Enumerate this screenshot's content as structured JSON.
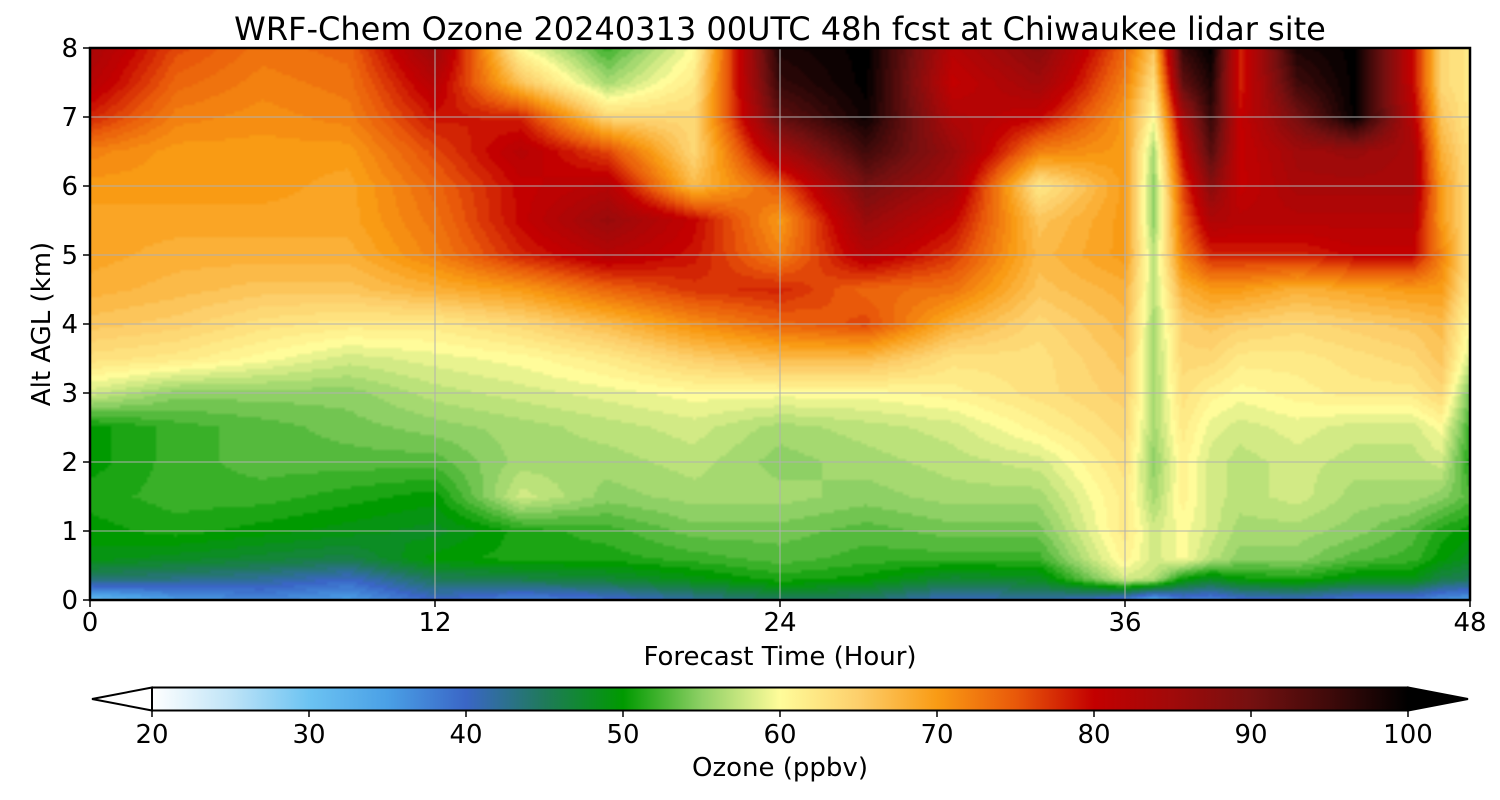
{
  "chart_data": {
    "type": "heatmap",
    "title": "WRF-Chem Ozone  20240313 00UTC 48h fcst at Chiwaukee lidar site",
    "xlabel": "Forecast Time (Hour)",
    "ylabel": "Alt AGL (km)",
    "xlim": [
      0,
      48
    ],
    "ylim": [
      0,
      8
    ],
    "x_ticks": [
      "0",
      "12",
      "24",
      "36",
      "48"
    ],
    "y_ticks": [
      "0",
      "1",
      "2",
      "3",
      "4",
      "5",
      "6",
      "7",
      "8"
    ],
    "grid": true,
    "colorbar": {
      "label": "Ozone  (ppbv)",
      "range": [
        20,
        100
      ],
      "extend": "both",
      "ticks": [
        "20",
        "30",
        "40",
        "50",
        "60",
        "70",
        "80",
        "90",
        "100"
      ],
      "stops": [
        {
          "value": 20,
          "color": "#ffffff"
        },
        {
          "value": 25,
          "color": "#bfe4f7"
        },
        {
          "value": 30,
          "color": "#6cc3f2"
        },
        {
          "value": 35,
          "color": "#4aa0e6"
        },
        {
          "value": 40,
          "color": "#3a66c6"
        },
        {
          "value": 45,
          "color": "#1f7a5a"
        },
        {
          "value": 50,
          "color": "#009a00"
        },
        {
          "value": 55,
          "color": "#8ed065"
        },
        {
          "value": 60,
          "color": "#fffc9a"
        },
        {
          "value": 65,
          "color": "#fdcf6b"
        },
        {
          "value": 70,
          "color": "#f99b14"
        },
        {
          "value": 75,
          "color": "#e9590a"
        },
        {
          "value": 80,
          "color": "#c30000"
        },
        {
          "value": 85,
          "color": "#a00a0a"
        },
        {
          "value": 90,
          "color": "#751010"
        },
        {
          "value": 95,
          "color": "#3f0a0a"
        },
        {
          "value": 100,
          "color": "#000000"
        }
      ]
    },
    "altitude_km": [
      0,
      0.3,
      0.6,
      1.0,
      1.5,
      2.0,
      2.5,
      3.0,
      3.5,
      4.0,
      4.5,
      5.0,
      5.5,
      6.0,
      6.5,
      7.0,
      7.5,
      8.0
    ],
    "hours": [
      0,
      3,
      6,
      9,
      12,
      15,
      18,
      21,
      24,
      27,
      30,
      33,
      36,
      37,
      38,
      39,
      40,
      42,
      44,
      46,
      47,
      48
    ],
    "ozone_ppbv": [
      [
        31,
        35,
        37,
        35,
        40,
        37,
        39,
        42,
        45,
        44,
        40,
        42,
        38,
        33,
        38,
        37,
        39,
        40,
        38,
        38,
        36,
        35
      ],
      [
        44,
        43,
        42,
        40,
        45,
        46,
        47,
        49,
        51,
        50,
        47,
        48,
        58,
        57,
        50,
        48,
        50,
        51,
        49,
        49,
        46,
        45
      ],
      [
        49,
        48,
        47,
        46,
        50,
        51,
        51,
        52,
        53,
        52,
        52,
        52,
        61,
        58,
        60,
        57,
        55,
        55,
        53,
        52,
        50,
        48
      ],
      [
        50,
        51,
        50,
        49,
        48,
        51,
        52,
        54,
        54,
        53,
        54,
        54,
        62,
        58,
        60,
        58,
        56,
        56,
        55,
        53,
        51,
        50
      ],
      [
        51,
        52,
        52,
        51,
        50,
        58,
        55,
        56,
        56,
        55,
        56,
        56,
        62,
        56,
        61,
        58,
        57,
        58,
        56,
        56,
        55,
        53
      ],
      [
        50,
        52,
        53,
        53,
        53,
        56,
        56,
        57,
        55,
        56,
        57,
        58,
        63,
        55,
        61,
        58,
        57,
        58,
        57,
        57,
        58,
        51
      ],
      [
        50,
        52,
        53,
        54,
        55,
        56,
        57,
        58,
        56,
        57,
        58,
        61,
        64,
        56,
        62,
        59,
        58,
        59,
        58,
        58,
        60,
        52
      ],
      [
        58,
        55,
        55,
        55,
        57,
        58,
        59,
        60,
        60,
        60,
        61,
        63,
        65,
        56,
        63,
        61,
        60,
        61,
        62,
        62,
        64,
        54
      ],
      [
        63,
        62,
        60,
        58,
        59,
        60,
        62,
        65,
        67,
        67,
        63,
        63,
        66,
        56,
        64,
        64,
        62,
        62,
        63,
        64,
        66,
        58
      ],
      [
        66,
        65,
        63,
        62,
        62,
        64,
        67,
        71,
        74,
        76,
        68,
        64,
        67,
        56,
        65,
        66,
        65,
        64,
        65,
        66,
        67,
        60
      ],
      [
        68,
        67,
        66,
        66,
        68,
        70,
        74,
        77,
        78,
        74,
        73,
        66,
        68,
        57,
        68,
        70,
        70,
        68,
        69,
        70,
        70,
        62
      ],
      [
        69,
        68,
        68,
        68,
        72,
        78,
        82,
        79,
        72,
        82,
        77,
        67,
        70,
        57,
        72,
        78,
        78,
        78,
        80,
        80,
        72,
        63
      ],
      [
        69,
        69,
        69,
        69,
        73,
        80,
        86,
        80,
        70,
        86,
        80,
        66,
        70,
        55,
        74,
        83,
        82,
        82,
        82,
        82,
        70,
        63
      ],
      [
        70,
        70,
        70,
        69,
        74,
        80,
        82,
        67,
        75,
        90,
        84,
        62,
        70,
        55,
        76,
        88,
        80,
        84,
        84,
        84,
        70,
        63
      ],
      [
        72,
        70,
        70,
        70,
        76,
        82,
        76,
        64,
        84,
        95,
        86,
        72,
        70,
        56,
        80,
        93,
        80,
        85,
        86,
        84,
        68,
        63
      ],
      [
        78,
        72,
        71,
        72,
        79,
        78,
        64,
        64,
        92,
        99,
        83,
        80,
        70,
        60,
        84,
        96,
        80,
        90,
        100,
        82,
        66,
        62
      ],
      [
        82,
        74,
        72,
        73,
        82,
        66,
        56,
        62,
        96,
        100,
        80,
        85,
        72,
        63,
        92,
        98,
        78,
        95,
        100,
        80,
        64,
        62
      ],
      [
        84,
        76,
        73,
        74,
        86,
        60,
        52,
        60,
        98,
        100,
        82,
        88,
        74,
        66,
        96,
        100,
        78,
        98,
        100,
        80,
        64,
        62
      ]
    ]
  }
}
